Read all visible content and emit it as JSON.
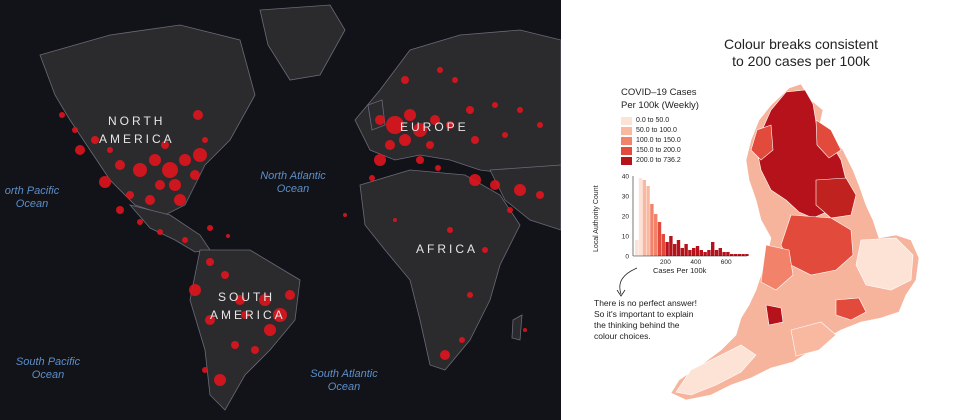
{
  "left_map": {
    "continents": [
      "NORTH",
      "AMERICA",
      "EUROPE",
      "AFRICA",
      "SOUTH",
      "AMERICA"
    ],
    "oceans": [
      {
        "line1": "orth Pacific",
        "line2": "Ocean"
      },
      {
        "line1": "North Atlantic",
        "line2": "Ocean"
      },
      {
        "line1": "South Pacific",
        "line2": "Ocean"
      },
      {
        "line1": "South Atlantic",
        "line2": "Ocean"
      }
    ],
    "colors": {
      "background": "#111318",
      "land": "#2b2b2e",
      "border": "#6a6a78",
      "dot": "#e0141e",
      "ocean_label": "#5d8fc9"
    }
  },
  "right_panel": {
    "title_line1": "Colour breaks consistent",
    "title_line2": "to 200 cases per 100k",
    "legend_title_line1": "COVID–19 Cases",
    "legend_title_line2": "Per 100k (Weekly)",
    "legend": [
      {
        "label": "0.0 to 50.0",
        "color": "#fde2d6"
      },
      {
        "label": "50.0 to 100.0",
        "color": "#f9b9a1"
      },
      {
        "label": "100.0 to 150.0",
        "color": "#f2836a"
      },
      {
        "label": "150.0 to 200.0",
        "color": "#e24a3c"
      },
      {
        "label": "200.0 to 736.2",
        "color": "#b5121b"
      }
    ],
    "histogram": {
      "ylabel": "Local Authority Count",
      "xlabel": "Cases Per 100k",
      "y_ticks": [
        "40",
        "30",
        "20",
        "10",
        "0"
      ],
      "x_ticks": [
        "200",
        "400",
        "600"
      ],
      "counts": [
        8,
        39,
        38,
        35,
        26,
        21,
        17,
        11,
        7,
        10,
        6,
        8,
        4,
        6,
        3,
        4,
        5,
        3,
        2,
        3,
        7,
        3,
        4,
        2,
        2,
        1,
        1,
        1,
        1,
        1
      ]
    },
    "note_lines": [
      "There is no perfect answer!",
      "So it's important to explain",
      "the thinking behind the",
      "colour choices."
    ]
  }
}
